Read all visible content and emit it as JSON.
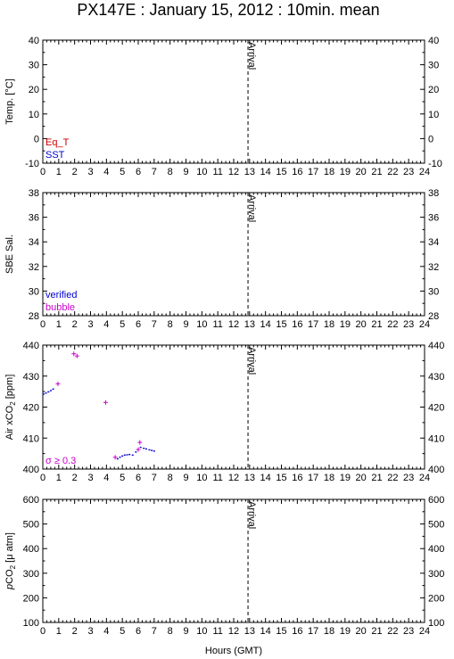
{
  "title": "PX147E : January 15, 2012 : 10min. mean",
  "xlabel": "Hours (GMT)",
  "colors": {
    "eq_t": "#cc0000",
    "sst": "#0000cc",
    "verified": "#0000cc",
    "bubble": "#cc00cc",
    "sigma": "#cc00cc",
    "axis": "#000000"
  },
  "chart_data": [
    {
      "type": "scatter",
      "ylabel": "Temp. [°C]",
      "xlim": [
        0,
        24
      ],
      "ylim": [
        -10,
        40
      ],
      "yticks": [
        -10,
        0,
        10,
        20,
        30,
        40
      ],
      "legend": [
        "Eq_T",
        "SST"
      ],
      "annotation": "Arrival",
      "vline_x": 12.9,
      "series": []
    },
    {
      "type": "scatter",
      "ylabel": "SBE Sal.",
      "xlim": [
        0,
        24
      ],
      "ylim": [
        28,
        38
      ],
      "yticks": [
        28,
        30,
        32,
        34,
        36,
        38
      ],
      "legend": [
        "verified",
        "bubble"
      ],
      "annotation": "Arrival",
      "vline_x": 12.9,
      "series": []
    },
    {
      "type": "scatter",
      "ylabel": "Air xCO",
      "ylabel_sub": "2",
      "ylabel_unit": " [ppm]",
      "xlim": [
        0,
        24
      ],
      "ylim": [
        400,
        440
      ],
      "yticks": [
        400,
        410,
        420,
        430,
        440
      ],
      "legend": [
        "σ ≥ 0.3"
      ],
      "annotation": "Arrival",
      "vline_x": 12.9,
      "series": [
        {
          "marker": "dot",
          "color": "#0000cc",
          "points": [
            [
              0.05,
              424.2
            ],
            [
              0.2,
              424.5
            ],
            [
              0.35,
              424.9
            ],
            [
              0.5,
              425.3
            ],
            [
              0.65,
              425.8
            ],
            [
              4.7,
              403.3
            ],
            [
              4.85,
              403.8
            ],
            [
              5.0,
              404.2
            ],
            [
              5.15,
              404.5
            ],
            [
              5.3,
              404.6
            ],
            [
              5.45,
              404.7
            ],
            [
              5.65,
              404.5
            ],
            [
              5.85,
              405.5
            ],
            [
              6.15,
              407.0
            ],
            [
              6.35,
              406.7
            ],
            [
              6.5,
              406.5
            ],
            [
              6.7,
              406.2
            ],
            [
              6.85,
              406.0
            ],
            [
              7.0,
              405.8
            ]
          ]
        },
        {
          "marker": "cross",
          "color": "#cc00cc",
          "points": [
            [
              0.95,
              427.5
            ],
            [
              1.95,
              437.2
            ],
            [
              2.15,
              436.5
            ],
            [
              3.95,
              421.5
            ],
            [
              4.55,
              403.8
            ],
            [
              6.0,
              406.3
            ],
            [
              6.1,
              408.6
            ]
          ]
        }
      ]
    },
    {
      "type": "scatter",
      "ylabel": "pCO",
      "ylabel_prefix": "p",
      "ylabel_sub": "2",
      "ylabel_unit": " [μ atm]",
      "xlim": [
        0,
        24
      ],
      "ylim": [
        100,
        600
      ],
      "yticks": [
        100,
        200,
        300,
        400,
        500,
        600
      ],
      "legend": [],
      "annotation": "Arrival",
      "vline_x": 12.9,
      "series": []
    }
  ]
}
